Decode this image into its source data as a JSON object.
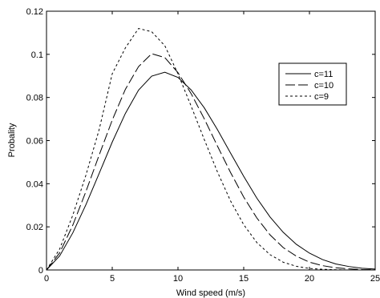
{
  "chart_data": {
    "type": "line",
    "title": "",
    "xlabel": "Wind speed (m/s)",
    "ylabel": "Probality",
    "xlim": [
      0,
      25
    ],
    "ylim": [
      0,
      0.12
    ],
    "xticks": [
      "0",
      "5",
      "10",
      "15",
      "20",
      "25"
    ],
    "yticks": [
      "0",
      "0.02",
      "0.04",
      "0.06",
      "0.08",
      "0.1",
      "0.12"
    ],
    "grid": false,
    "legend_position": "right",
    "series": [
      {
        "name": "c=11",
        "dash": "solid",
        "x": [
          0,
          1,
          2,
          3,
          4,
          5,
          6,
          7,
          8,
          9,
          10,
          11,
          12,
          13,
          14,
          15,
          16,
          17,
          18,
          19,
          20,
          21,
          22,
          23,
          24,
          25
        ],
        "y": [
          0,
          0.0065,
          0.0172,
          0.0303,
          0.0447,
          0.0593,
          0.0726,
          0.0834,
          0.0899,
          0.0917,
          0.0893,
          0.0835,
          0.0752,
          0.0651,
          0.0542,
          0.0434,
          0.0333,
          0.0246,
          0.0175,
          0.0119,
          0.0078,
          0.0048,
          0.0028,
          0.0016,
          0.0008,
          0.0004
        ]
      },
      {
        "name": "c=10",
        "dash": "longdash",
        "x": [
          0,
          1,
          2,
          3,
          4,
          5,
          6,
          7,
          8,
          9,
          10,
          11,
          12,
          13,
          14,
          15,
          16,
          17,
          18,
          19,
          20,
          21,
          22,
          23,
          24,
          25
        ],
        "y": [
          0,
          0.0079,
          0.0208,
          0.0364,
          0.0532,
          0.0695,
          0.0838,
          0.0943,
          0.1003,
          0.0985,
          0.0915,
          0.0818,
          0.0701,
          0.0575,
          0.0452,
          0.0338,
          0.0241,
          0.0163,
          0.0104,
          0.0064,
          0.0036,
          0.002,
          0.001,
          0.0005,
          0.0002,
          0.0001
        ]
      },
      {
        "name": "c=9",
        "dash": "shortdash",
        "x": [
          0,
          1,
          2,
          3,
          4,
          5,
          6,
          7,
          8,
          9,
          10,
          11,
          12,
          13,
          14,
          15,
          16,
          17,
          18,
          19,
          20,
          21,
          22,
          23,
          24,
          25
        ],
        "y": [
          0,
          0.0097,
          0.0254,
          0.044,
          0.065,
          0.091,
          0.103,
          0.112,
          0.1105,
          0.104,
          0.091,
          0.076,
          0.0605,
          0.0455,
          0.032,
          0.021,
          0.0127,
          0.0071,
          0.0036,
          0.0017,
          0.0007,
          0.0003,
          0.0001,
          0,
          0,
          0
        ]
      }
    ]
  }
}
